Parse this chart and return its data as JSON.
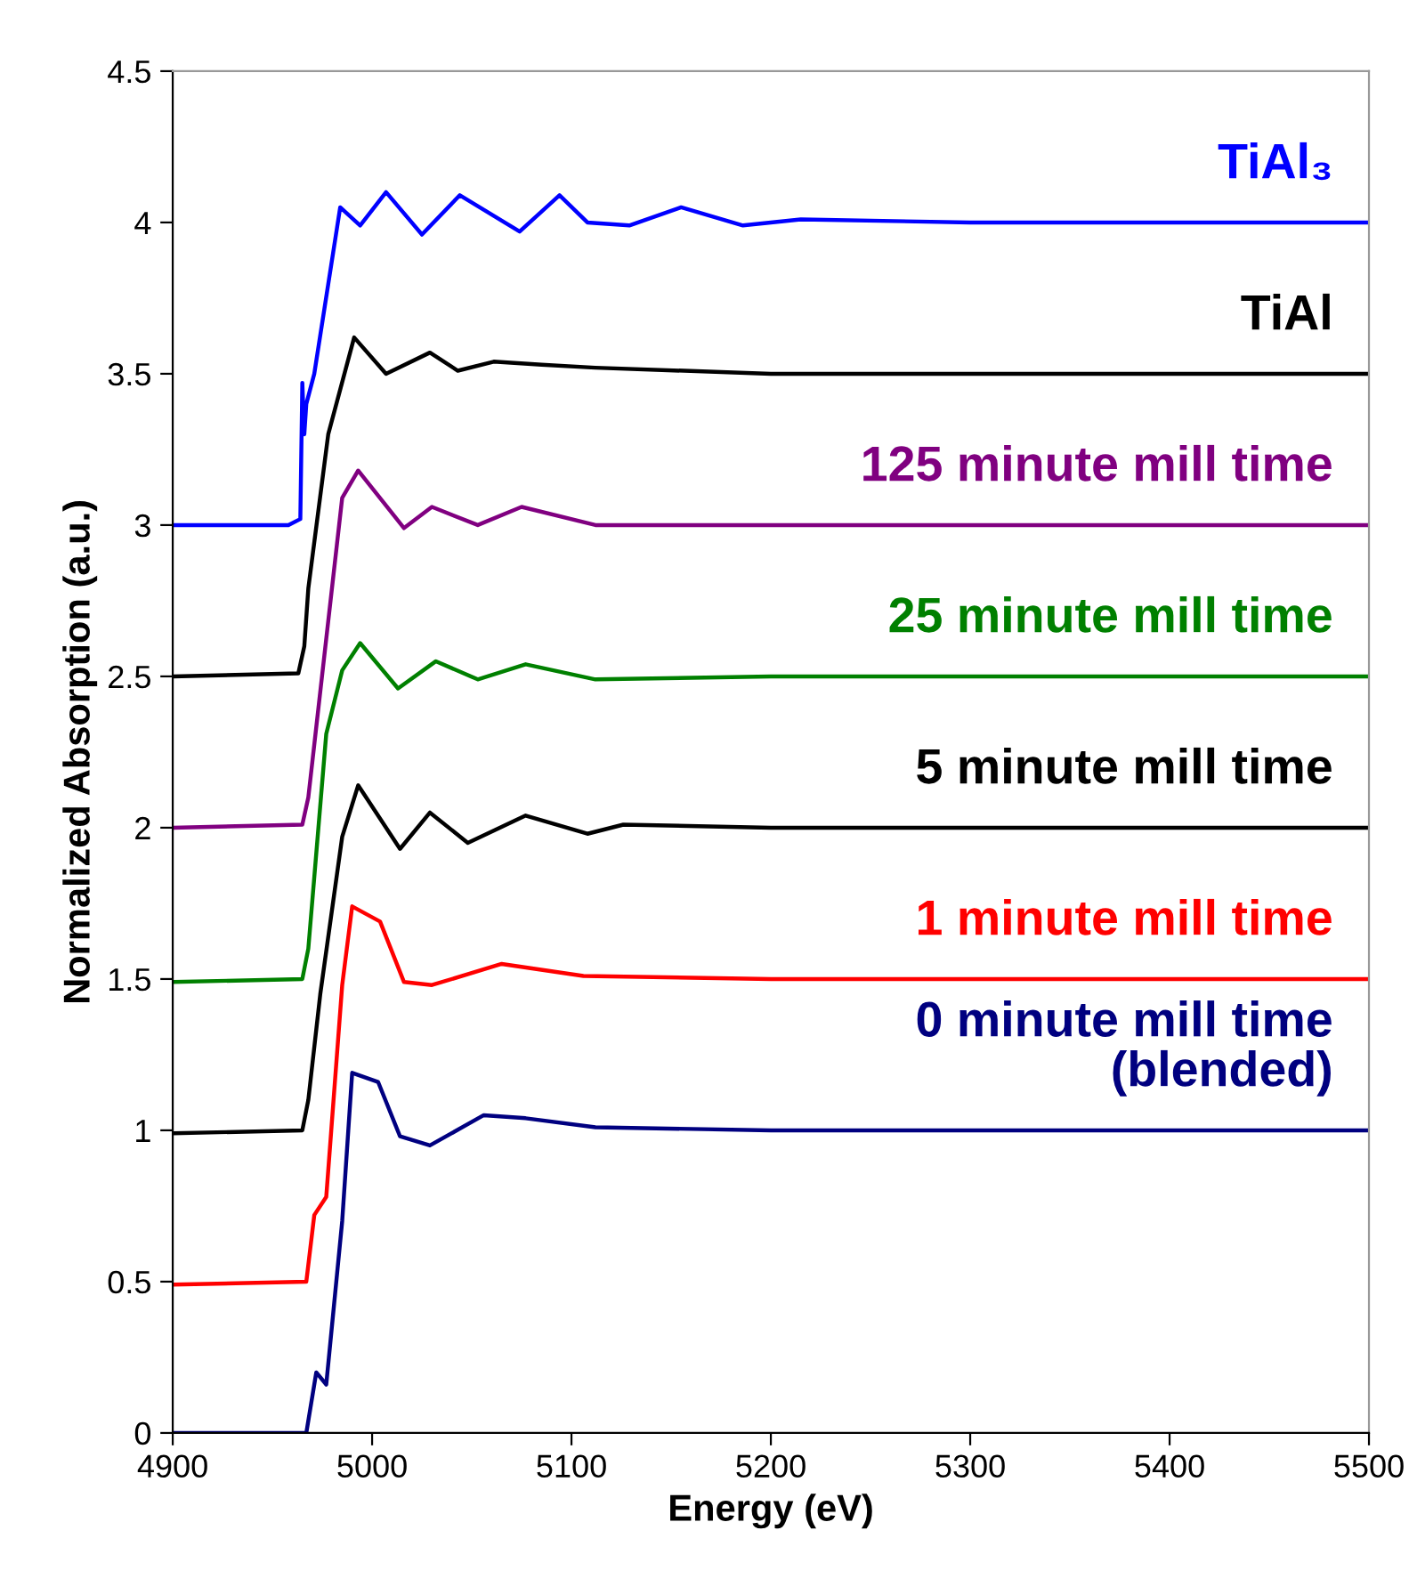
{
  "chart_data": {
    "type": "line",
    "xlabel": "Energy (eV)",
    "ylabel": "Normalized Absorption (a.u.)",
    "xlim": [
      4900,
      5500
    ],
    "xticks": [
      4900,
      5000,
      5100,
      5200,
      5300,
      5400,
      5500
    ],
    "ylim": [
      0,
      4.5
    ],
    "yticks": [
      0,
      0.5,
      1,
      1.5,
      2,
      2.5,
      3,
      3.5,
      4,
      4.5
    ],
    "grid": false,
    "legend": false,
    "marker": "none",
    "line_style": "solid",
    "series": [
      {
        "name": "TiAl₃",
        "color": "#0000ff",
        "x": [
          4900,
          4958,
          4964,
          4965,
          4966,
          4967,
          4971,
          4984,
          4994,
          5007,
          5025,
          5044,
          5074,
          5094,
          5108,
          5129,
          5155,
          5186,
          5215,
          5300,
          5400,
          5500
        ],
        "values": [
          3.0,
          3.0,
          3.02,
          3.47,
          3.3,
          3.4,
          3.5,
          4.05,
          3.99,
          4.1,
          3.96,
          4.09,
          3.97,
          4.09,
          4.0,
          3.99,
          4.05,
          3.99,
          4.01,
          4.0,
          4.0,
          4.0
        ]
      },
      {
        "name": "TiAl",
        "color": "#000000",
        "x": [
          4900,
          4963,
          4966,
          4968,
          4978,
          4991,
          5007,
          5029,
          5043,
          5061,
          5085,
          5112,
          5200,
          5300,
          5400,
          5500
        ],
        "values": [
          2.5,
          2.51,
          2.6,
          2.79,
          3.3,
          3.62,
          3.5,
          3.57,
          3.51,
          3.54,
          3.53,
          3.52,
          3.5,
          3.5,
          3.5,
          3.5
        ]
      },
      {
        "name": "125 minute mill time",
        "color": "#800080",
        "x": [
          4900,
          4965,
          4968,
          4985,
          4993,
          5016,
          5030,
          5053,
          5075,
          5112,
          5200,
          5300,
          5400,
          5500
        ],
        "values": [
          2.0,
          2.01,
          2.1,
          3.09,
          3.18,
          2.99,
          3.06,
          3.0,
          3.06,
          3.0,
          3.0,
          3.0,
          3.0,
          3.0
        ]
      },
      {
        "name": "25 minute mill time",
        "color": "#008000",
        "x": [
          4900,
          4965,
          4968,
          4977,
          4985,
          4994,
          5013,
          5032,
          5053,
          5077,
          5112,
          5200,
          5300,
          5400,
          5500
        ],
        "values": [
          1.49,
          1.5,
          1.6,
          2.31,
          2.52,
          2.61,
          2.46,
          2.55,
          2.49,
          2.54,
          2.49,
          2.5,
          2.5,
          2.5,
          2.5
        ]
      },
      {
        "name": "5 minute mill time",
        "color": "#000000",
        "x": [
          4900,
          4965,
          4968,
          4974,
          4985,
          4993,
          5014,
          5029,
          5048,
          5077,
          5108,
          5126,
          5200,
          5300,
          5400,
          5500
        ],
        "values": [
          0.99,
          1.0,
          1.1,
          1.45,
          1.97,
          2.14,
          1.93,
          2.05,
          1.95,
          2.04,
          1.98,
          2.01,
          2.0,
          2.0,
          2.0,
          2.0
        ]
      },
      {
        "name": "1 minute mill time",
        "color": "#ff0000",
        "x": [
          4900,
          4967,
          4971,
          4977,
          4985,
          4990,
          5004,
          5016,
          5030,
          5065,
          5106,
          5200,
          5300,
          5400,
          5500
        ],
        "values": [
          0.49,
          0.5,
          0.72,
          0.78,
          1.48,
          1.74,
          1.69,
          1.49,
          1.48,
          1.55,
          1.51,
          1.5,
          1.5,
          1.5,
          1.5
        ]
      },
      {
        "name": "0 minute mill time\n(blended)",
        "color": "#000080",
        "x": [
          4900,
          4967,
          4972,
          4977,
          4985,
          4990,
          5003,
          5014,
          5029,
          5056,
          5077,
          5112,
          5200,
          5300,
          5400,
          5500
        ],
        "values": [
          0.0,
          0.0,
          0.2,
          0.16,
          0.7,
          1.19,
          1.16,
          0.98,
          0.95,
          1.05,
          1.04,
          1.01,
          1.0,
          1.0,
          1.0,
          1.0
        ]
      }
    ]
  }
}
